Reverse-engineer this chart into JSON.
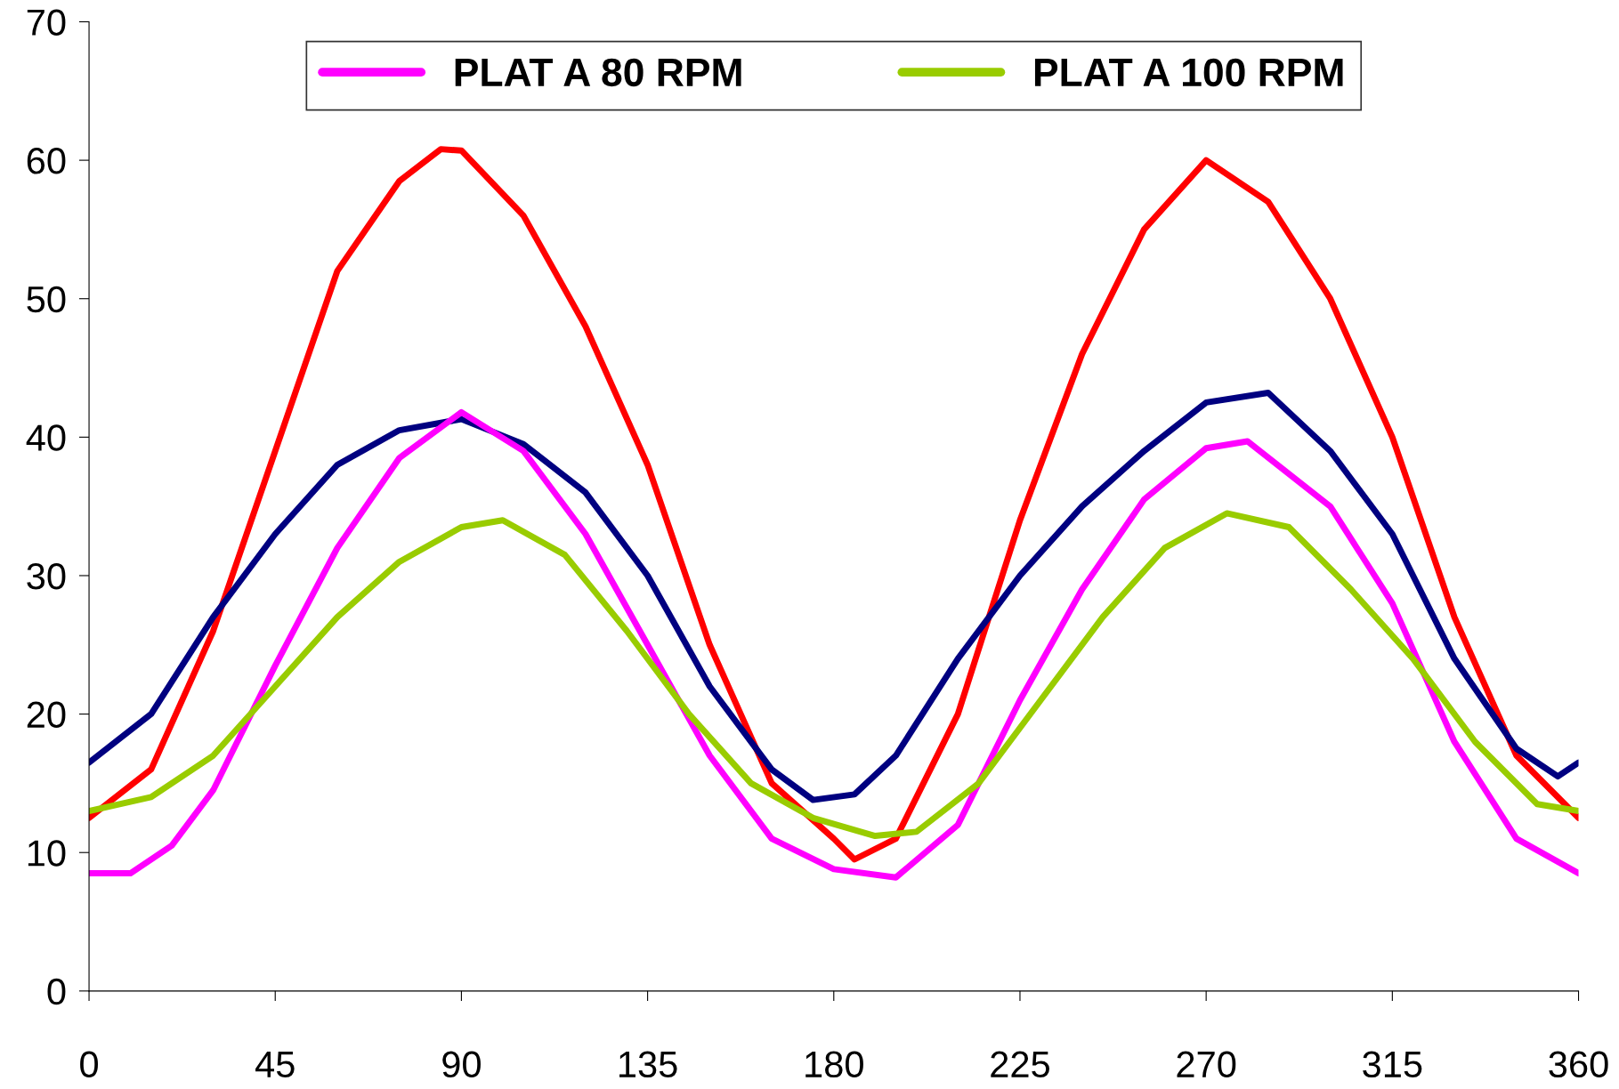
{
  "chart_data": {
    "type": "line",
    "xlim": [
      0,
      360
    ],
    "xticks": [
      0,
      45,
      90,
      135,
      180,
      225,
      270,
      315,
      360
    ],
    "ylim": [
      0,
      70
    ],
    "yticks": [
      0,
      10,
      20,
      30,
      40,
      50,
      60,
      70
    ],
    "grid": false,
    "legend": "top",
    "marker": "none",
    "line_style": "solid",
    "series": [
      {
        "color": "#ff0000",
        "x": [
          0,
          15,
          30,
          45,
          60,
          75,
          85,
          90,
          105,
          120,
          135,
          150,
          165,
          180,
          185,
          195,
          210,
          225,
          240,
          255,
          270,
          285,
          300,
          315,
          330,
          345,
          360
        ],
        "values": [
          12.5,
          16,
          26,
          39,
          52,
          58.5,
          60.8,
          60.7,
          56,
          48,
          38,
          25,
          15,
          11,
          9.5,
          11,
          20,
          34,
          46,
          55,
          60,
          57,
          50,
          40,
          27,
          17,
          12.5
        ]
      },
      {
        "color": "#000080",
        "x": [
          0,
          15,
          30,
          45,
          60,
          75,
          90,
          105,
          120,
          135,
          150,
          165,
          175,
          185,
          195,
          210,
          225,
          240,
          255,
          270,
          285,
          300,
          315,
          330,
          345,
          355,
          360
        ],
        "values": [
          16.5,
          20,
          27,
          33,
          38,
          40.5,
          41.3,
          39.5,
          36,
          30,
          22,
          16,
          13.8,
          14.2,
          17,
          24,
          30,
          35,
          39,
          42.5,
          43.2,
          39,
          33,
          24,
          17.5,
          15.5,
          16.5
        ]
      },
      {
        "name": "PLAT A 80 RPM",
        "color": "#ff00ff",
        "x": [
          0,
          10,
          20,
          30,
          45,
          60,
          75,
          90,
          105,
          120,
          135,
          150,
          165,
          180,
          195,
          210,
          225,
          240,
          255,
          270,
          280,
          300,
          315,
          330,
          345,
          360
        ],
        "values": [
          8.5,
          8.5,
          10.5,
          14.5,
          23.5,
          32,
          38.5,
          41.8,
          39,
          33,
          25,
          17,
          11,
          8.8,
          8.2,
          12,
          21,
          29,
          35.5,
          39.2,
          39.7,
          35,
          28,
          18,
          11,
          8.5
        ]
      },
      {
        "name": "PLAT A 100 RPM",
        "color": "#99cc00",
        "x": [
          0,
          15,
          30,
          45,
          60,
          75,
          90,
          100,
          115,
          130,
          145,
          160,
          175,
          190,
          200,
          215,
          230,
          245,
          260,
          275,
          290,
          305,
          320,
          335,
          350,
          360
        ],
        "values": [
          13,
          14,
          17,
          22,
          27,
          31,
          33.5,
          34,
          31.5,
          26,
          20,
          15,
          12.5,
          11.2,
          11.5,
          15,
          21,
          27,
          32,
          34.5,
          33.5,
          29,
          24,
          18,
          13.5,
          13
        ]
      }
    ]
  }
}
